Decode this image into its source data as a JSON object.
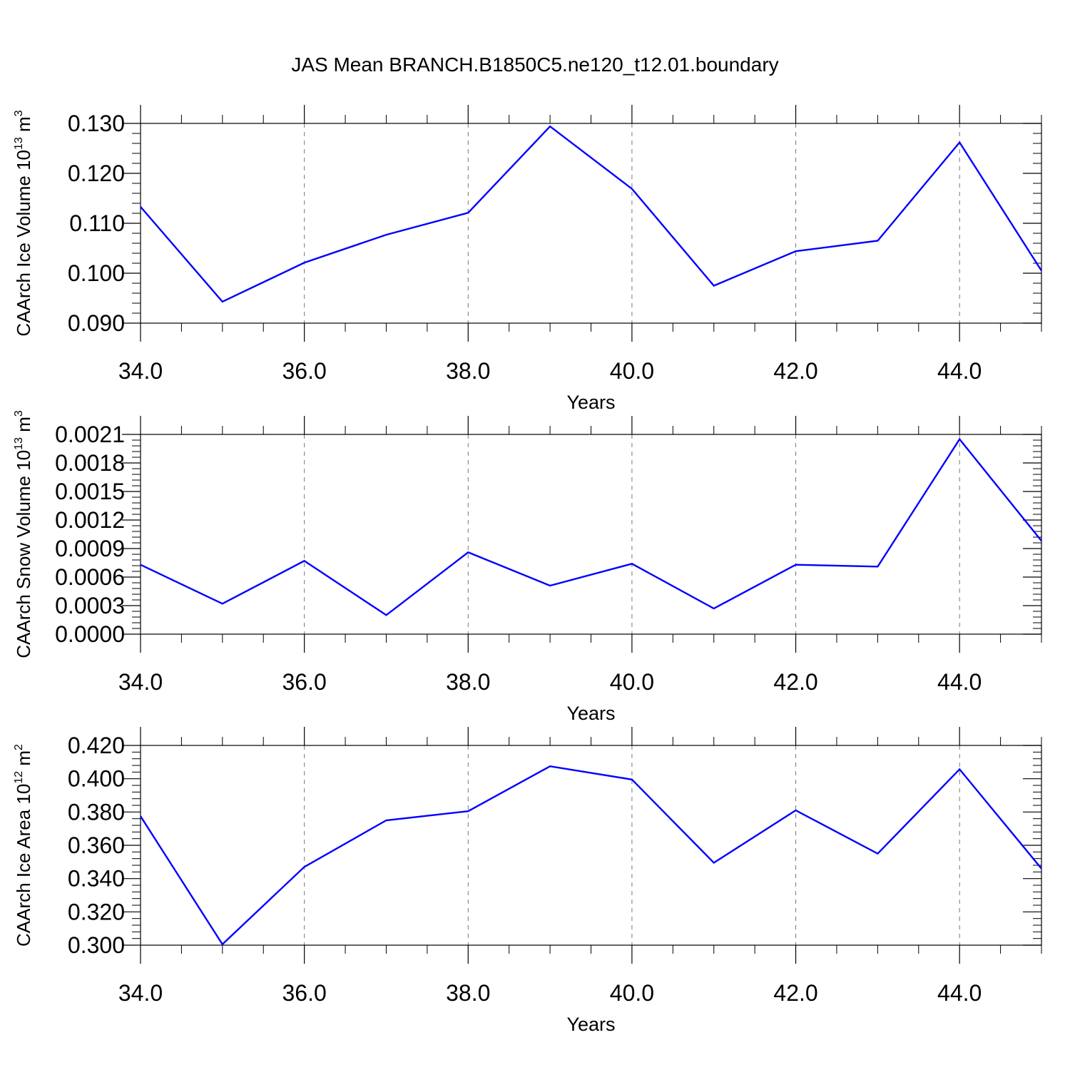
{
  "title": "JAS Mean BRANCH.B1850C5.ne120_t12.01.boundary",
  "line_color": "#0000ff",
  "chart_data": [
    {
      "type": "line",
      "title": "JAS Mean BRANCH.B1850C5.ne120_t12.01.boundary",
      "xlabel": "Years",
      "ylabel": "CAArch Ice Volume 10",
      "ylabel_exp": "13",
      "ylabel_unit": "m",
      "ylabel_unit_exp": "3",
      "xlim": [
        34,
        45
      ],
      "ylim": [
        0.09,
        0.13
      ],
      "xticks": [
        34,
        36,
        38,
        40,
        42,
        44
      ],
      "xtick_labels": [
        "34.0",
        "36.0",
        "38.0",
        "40.0",
        "42.0",
        "44.0"
      ],
      "yticks": [
        0.09,
        0.1,
        0.11,
        0.12,
        0.13
      ],
      "ytick_labels": [
        "0.090",
        "0.100",
        "0.110",
        "0.120",
        "0.130"
      ],
      "x": [
        34,
        35,
        36,
        37,
        38,
        39,
        40,
        41,
        42,
        43,
        44,
        45
      ],
      "values": [
        0.1133,
        0.0943,
        0.1021,
        0.1077,
        0.1121,
        0.1294,
        0.1169,
        0.0975,
        0.1044,
        0.1065,
        0.1262,
        0.1005
      ]
    },
    {
      "type": "line",
      "xlabel": "Years",
      "ylabel": "CAArch Snow Volume 10",
      "ylabel_exp": "13",
      "ylabel_unit": "m",
      "ylabel_unit_exp": "3",
      "xlim": [
        34,
        45
      ],
      "ylim": [
        0.0,
        0.0021
      ],
      "xticks": [
        34,
        36,
        38,
        40,
        42,
        44
      ],
      "xtick_labels": [
        "34.0",
        "36.0",
        "38.0",
        "40.0",
        "42.0",
        "44.0"
      ],
      "yticks": [
        0.0,
        0.0003,
        0.0006,
        0.0009,
        0.0012,
        0.0015,
        0.0018,
        0.0021
      ],
      "ytick_labels": [
        "0.0000",
        "0.0003",
        "0.0006",
        "0.0009",
        "0.0012",
        "0.0015",
        "0.0018",
        "0.0021"
      ],
      "x": [
        34,
        35,
        36,
        37,
        38,
        39,
        40,
        41,
        42,
        43,
        44,
        45
      ],
      "values": [
        0.00073,
        0.00032,
        0.00077,
        0.0002,
        0.00086,
        0.00051,
        0.00074,
        0.00027,
        0.00073,
        0.00071,
        0.00205,
        0.00098
      ]
    },
    {
      "type": "line",
      "xlabel": "Years",
      "ylabel": "CAArch Ice Area 10",
      "ylabel_exp": "12",
      "ylabel_unit": "m",
      "ylabel_unit_exp": "2",
      "xlim": [
        34,
        45
      ],
      "ylim": [
        0.3,
        0.42
      ],
      "xticks": [
        34,
        36,
        38,
        40,
        42,
        44
      ],
      "xtick_labels": [
        "34.0",
        "36.0",
        "38.0",
        "40.0",
        "42.0",
        "44.0"
      ],
      "yticks": [
        0.3,
        0.32,
        0.34,
        0.36,
        0.38,
        0.4,
        0.42
      ],
      "ytick_labels": [
        "0.300",
        "0.320",
        "0.340",
        "0.360",
        "0.380",
        "0.400",
        "0.420"
      ],
      "x": [
        34,
        35,
        36,
        37,
        38,
        39,
        40,
        41,
        42,
        43,
        44,
        45
      ],
      "values": [
        0.3775,
        0.3005,
        0.347,
        0.375,
        0.3805,
        0.4075,
        0.3995,
        0.3495,
        0.381,
        0.355,
        0.4057,
        0.346
      ]
    }
  ]
}
